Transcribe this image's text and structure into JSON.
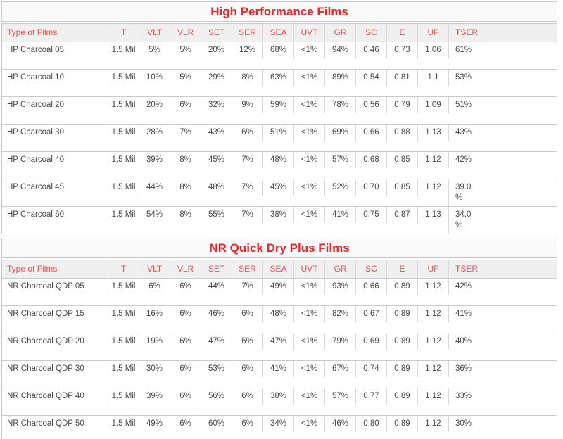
{
  "colors": {
    "title_red": "#f52323",
    "header_red": "#fb4b49",
    "body_text": "#474747",
    "border": "#c8c8c8",
    "title_bg": "#fafafa",
    "header_bg": "#f0f0f0"
  },
  "tables": [
    {
      "title": "High Performance Films",
      "columns": [
        "Type of Films",
        "T",
        "VLT",
        "VLR",
        "SET",
        "SER",
        "SEA",
        "UVT",
        "GR",
        "SC",
        "E",
        "UF",
        "TSER"
      ],
      "rows": [
        [
          "HP Charcoal 05",
          "1.5 Mil",
          "5%",
          "5%",
          "20%",
          "12%",
          "68%",
          "<1%",
          "94%",
          "0.46",
          "0.73",
          "1.06",
          "61%"
        ],
        [
          "HP Charcoal 10",
          "1.5 Mil",
          "10%",
          "5%",
          "29%",
          "8%",
          "63%",
          "<1%",
          "89%",
          "0.54",
          "0.81",
          "1.1",
          "53%"
        ],
        [
          "HP Charcoal 20",
          "1.5 Mil",
          "20%",
          "6%",
          "32%",
          "9%",
          "59%",
          "<1%",
          "78%",
          "0.56",
          "0.79",
          "1.09",
          "51%"
        ],
        [
          "HP Charcoal 30",
          "1.5 Mil",
          "28%",
          "7%",
          "43%",
          "6%",
          "51%",
          "<1%",
          "69%",
          "0.66",
          "0.88",
          "1.13",
          "43%"
        ],
        [
          "HP Charcoal 40",
          "1.5 Mil",
          "39%",
          "8%",
          "45%",
          "7%",
          "48%",
          "<1%",
          "57%",
          "0.68",
          "0.85",
          "1.12",
          "42%"
        ],
        [
          "HP Charcoal 45",
          "1.5 Mil",
          "44%",
          "8%",
          "48%",
          "7%",
          "45%",
          "<1%",
          "52%",
          "0.70",
          "0.85",
          "1.12",
          "39.0\n%"
        ],
        [
          "HP Charcoal 50",
          "1.5 Mil",
          "54%",
          "8%",
          "55%",
          "7%",
          "38%",
          "<1%",
          "41%",
          "0.75",
          "0.87",
          "1.13",
          "34.0\n%"
        ]
      ]
    },
    {
      "title": "NR Quick Dry Plus Films",
      "columns": [
        "Type of Films",
        "T",
        "VLT",
        "VLR",
        "SET",
        "SER",
        "SEA",
        "UVT",
        "GR",
        "SC",
        "E",
        "UF",
        "TSER"
      ],
      "rows": [
        [
          "NR Charcoal QDP 05",
          "1.5 Mil",
          "6%",
          "6%",
          "44%",
          "7%",
          "49%",
          "<1%",
          "93%",
          "0.66",
          "0.89",
          "1.12",
          "42%"
        ],
        [
          "NR Charcoal QDP 15",
          "1.5 Mil",
          "16%",
          "6%",
          "46%",
          "6%",
          "48%",
          "<1%",
          "82%",
          "0.67",
          "0.89",
          "1.12",
          "41%"
        ],
        [
          "NR Charcoal QDP 20",
          "1.5 Mil",
          "19%",
          "6%",
          "47%",
          "6%",
          "47%",
          "<1%",
          "79%",
          "0.69",
          "0.89",
          "1.12",
          "40%"
        ],
        [
          "NR Charcoal QDP 30",
          "1.5 Mil",
          "30%",
          "6%",
          "53%",
          "6%",
          "41%",
          "<1%",
          "67%",
          "0.74",
          "0.89",
          "1.12",
          "36%"
        ],
        [
          "NR Charcoal QDP 40",
          "1.5 Mil",
          "39%",
          "6%",
          "56%",
          "6%",
          "38%",
          "<1%",
          "57%",
          "0.77",
          "0.89",
          "1.12",
          "33%"
        ],
        [
          "NR Charcoal QDP 50",
          "1.5 Mil",
          "49%",
          "6%",
          "60%",
          "6%",
          "34%",
          "<1%",
          "46%",
          "0.80",
          "0.89",
          "1.12",
          "30%"
        ]
      ]
    }
  ]
}
